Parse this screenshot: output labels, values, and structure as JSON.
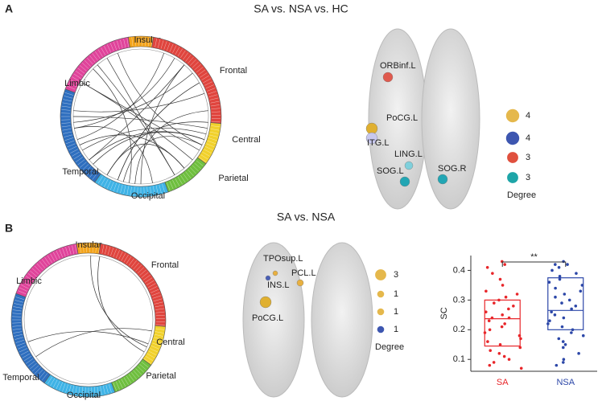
{
  "panel_a": {
    "label": "A",
    "title": "SA vs. NSA vs. HC",
    "regions": [
      {
        "name": "Insular",
        "color": "#f2a31b"
      },
      {
        "name": "Frontal",
        "color": "#e0453e"
      },
      {
        "name": "Central",
        "color": "#f1d12c"
      },
      {
        "name": "Parietal",
        "color": "#6fbf3f"
      },
      {
        "name": "Occipital",
        "color": "#3fb3e6"
      },
      {
        "name": "Temporal",
        "color": "#2f6fbf"
      },
      {
        "name": "Limbic",
        "color": "#e0449b"
      }
    ],
    "nodes": [
      {
        "label": "ORBinf.L",
        "color": "#e05a4e"
      },
      {
        "label": "PoCG.L",
        "color": "#e0b030"
      },
      {
        "label": "ITG.L",
        "color": "#c8c8ee"
      },
      {
        "label": "LING.L",
        "color": "#7fd0dc"
      },
      {
        "label": "SOG.L",
        "color": "#22a6b4"
      },
      {
        "label": "SOG.R",
        "color": "#22a6b4"
      }
    ],
    "legend": {
      "title": "Degree",
      "items": [
        {
          "value": 4,
          "color": "#e5b84c"
        },
        {
          "value": 4,
          "color": "#3d56b0"
        },
        {
          "value": 3,
          "color": "#e0503e"
        },
        {
          "value": 3,
          "color": "#1ea5a8"
        }
      ]
    }
  },
  "panel_b": {
    "label": "B",
    "title": "SA vs. NSA",
    "regions": [
      {
        "name": "Insular",
        "color": "#f2a31b"
      },
      {
        "name": "Frontal",
        "color": "#e0453e"
      },
      {
        "name": "Central",
        "color": "#f1d12c"
      },
      {
        "name": "Parietal",
        "color": "#6fbf3f"
      },
      {
        "name": "Occipital",
        "color": "#3fb3e6"
      },
      {
        "name": "Temporal",
        "color": "#2f6fbf"
      },
      {
        "name": "Limbic",
        "color": "#e0449b"
      }
    ],
    "nodes": [
      {
        "label": "TPOsup.L",
        "color": "#4a5fb5"
      },
      {
        "label": "INS.L",
        "color": "#e8b040"
      },
      {
        "label": "PCL.L",
        "color": "#e8b040"
      },
      {
        "label": "PoCG.L",
        "color": "#e0b030"
      }
    ],
    "legend": {
      "title": "Degree",
      "items": [
        {
          "value": 3,
          "color": "#e5b84c"
        },
        {
          "value": 1,
          "color": "#e5b84c"
        },
        {
          "value": 1,
          "color": "#e5b84c"
        },
        {
          "value": 1,
          "color": "#3d56b0"
        }
      ]
    }
  },
  "chart_data": {
    "type": "box",
    "ylabel": "SC",
    "ylim": [
      0.06,
      0.45
    ],
    "yticks": [
      0.1,
      0.2,
      0.3,
      0.4
    ],
    "significance": "**",
    "categories": [
      "SA",
      "NSA"
    ],
    "series": [
      {
        "name": "SA",
        "color": "#e8262a",
        "box": {
          "q1": 0.145,
          "median": 0.237,
          "q3": 0.3
        },
        "values": [
          0.43,
          0.42,
          0.41,
          0.39,
          0.37,
          0.35,
          0.33,
          0.32,
          0.31,
          0.3,
          0.29,
          0.28,
          0.27,
          0.26,
          0.25,
          0.24,
          0.24,
          0.23,
          0.22,
          0.21,
          0.2,
          0.19,
          0.18,
          0.17,
          0.16,
          0.15,
          0.14,
          0.13,
          0.12,
          0.11,
          0.1,
          0.09,
          0.08,
          0.07
        ]
      },
      {
        "name": "NSA",
        "color": "#2c47a8",
        "box": {
          "q1": 0.2,
          "median": 0.265,
          "q3": 0.375
        },
        "values": [
          0.43,
          0.42,
          0.42,
          0.41,
          0.4,
          0.39,
          0.38,
          0.37,
          0.36,
          0.35,
          0.34,
          0.33,
          0.32,
          0.31,
          0.3,
          0.29,
          0.28,
          0.27,
          0.26,
          0.25,
          0.24,
          0.23,
          0.22,
          0.21,
          0.2,
          0.19,
          0.18,
          0.17,
          0.16,
          0.15,
          0.14,
          0.12,
          0.1,
          0.09,
          0.08
        ]
      }
    ]
  }
}
